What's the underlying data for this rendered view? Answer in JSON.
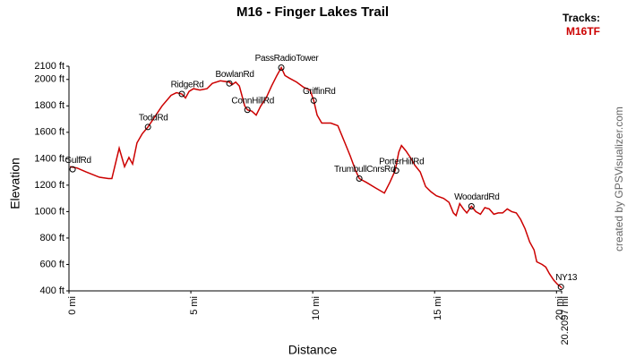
{
  "chart_data": {
    "type": "line",
    "title": "M16 - Finger Lakes Trail",
    "x_label": "Distance",
    "y_label": "Elevation",
    "legend_title": "Tracks:",
    "legend_position": "top-right",
    "credit": "created by GPSVisualizer.com",
    "xlim": [
      0,
      20.2097
    ],
    "ylim": [
      400,
      2100
    ],
    "xticks": [
      {
        "value": 0,
        "label": "0 mi"
      },
      {
        "value": 5,
        "label": "5 mi"
      },
      {
        "value": 10,
        "label": "10 mi"
      },
      {
        "value": 15,
        "label": "15 mi"
      },
      {
        "value": 20,
        "label": "20 mi"
      },
      {
        "value": 20.2097,
        "label": "20.2097 mi"
      }
    ],
    "yticks": [
      {
        "value": 400,
        "label": "400 ft"
      },
      {
        "value": 600,
        "label": "600 ft"
      },
      {
        "value": 800,
        "label": "800 ft"
      },
      {
        "value": 1000,
        "label": "1000 ft"
      },
      {
        "value": 1200,
        "label": "1200 ft"
      },
      {
        "value": 1400,
        "label": "1400 ft"
      },
      {
        "value": 1600,
        "label": "1600 ft"
      },
      {
        "value": 1800,
        "label": "1800 ft"
      },
      {
        "value": 2000,
        "label": "2000 ft"
      },
      {
        "value": 2100,
        "label": "2100 ft"
      }
    ],
    "grid": false,
    "x": [
      0.04,
      0.33,
      0.7,
      1.25,
      1.62,
      1.76,
      2.06,
      2.28,
      2.46,
      2.61,
      2.79,
      3.01,
      3.24,
      3.53,
      3.82,
      4.19,
      4.41,
      4.63,
      4.78,
      4.93,
      5.11,
      5.37,
      5.66,
      5.88,
      6.21,
      6.58,
      6.69,
      6.84,
      6.99,
      7.21,
      7.32,
      7.5,
      7.68,
      7.87,
      8.09,
      8.31,
      8.53,
      8.71,
      8.86,
      9.04,
      9.34,
      9.63,
      9.89,
      10.04,
      10.18,
      10.37,
      10.74,
      11.03,
      11.32,
      11.54,
      11.76,
      11.91,
      12.21,
      12.57,
      12.94,
      13.16,
      13.38,
      13.53,
      13.64,
      13.82,
      14.04,
      14.19,
      14.41,
      14.63,
      14.85,
      15.07,
      15.37,
      15.59,
      15.77,
      15.88,
      16.03,
      16.18,
      16.32,
      16.51,
      16.69,
      16.88,
      17.06,
      17.24,
      17.43,
      17.61,
      17.79,
      17.98,
      18.16,
      18.35,
      18.53,
      18.71,
      18.9,
      19.08,
      19.19,
      19.41,
      19.56,
      19.71,
      19.89,
      20.04,
      20.18,
      20.21
    ],
    "series": [
      {
        "name": "M16TF",
        "color": "#cc0000",
        "values": [
          1340,
          1330,
          1300,
          1260,
          1250,
          1250,
          1480,
          1340,
          1410,
          1360,
          1520,
          1590,
          1640,
          1720,
          1800,
          1880,
          1900,
          1890,
          1860,
          1910,
          1930,
          1920,
          1930,
          1970,
          1990,
          1980,
          1960,
          1980,
          1950,
          1800,
          1770,
          1760,
          1730,
          1800,
          1860,
          1950,
          2030,
          2090,
          2030,
          2010,
          1980,
          1940,
          1920,
          1840,
          1730,
          1670,
          1670,
          1650,
          1520,
          1420,
          1310,
          1250,
          1220,
          1180,
          1140,
          1220,
          1310,
          1450,
          1500,
          1460,
          1400,
          1350,
          1300,
          1190,
          1150,
          1120,
          1100,
          1070,
          990,
          970,
          1060,
          1020,
          990,
          1040,
          1000,
          980,
          1030,
          1020,
          980,
          990,
          990,
          1020,
          1000,
          990,
          940,
          870,
          770,
          710,
          620,
          600,
          580,
          530,
          480,
          450,
          430,
          420
        ]
      }
    ],
    "waypoints": [
      {
        "label": "GulfRd",
        "x": 0.15,
        "y": 1320
      },
      {
        "label": "ToddRd",
        "x": 3.24,
        "y": 1640
      },
      {
        "label": "RidgeRd",
        "x": 4.63,
        "y": 1890
      },
      {
        "label": "BowlanRd",
        "x": 6.58,
        "y": 1970
      },
      {
        "label": "ConnHillRd",
        "x": 7.32,
        "y": 1770
      },
      {
        "label": "PassRadioTower",
        "x": 8.71,
        "y": 2090
      },
      {
        "label": "GriffinRd",
        "x": 10.04,
        "y": 1840
      },
      {
        "label": "TrumbullCnrsRd",
        "x": 11.91,
        "y": 1250
      },
      {
        "label": "PorterHillRd",
        "x": 13.42,
        "y": 1310
      },
      {
        "label": "WoodardRd",
        "x": 16.51,
        "y": 1040
      },
      {
        "label": "NY13",
        "x": 20.18,
        "y": 430
      }
    ]
  }
}
